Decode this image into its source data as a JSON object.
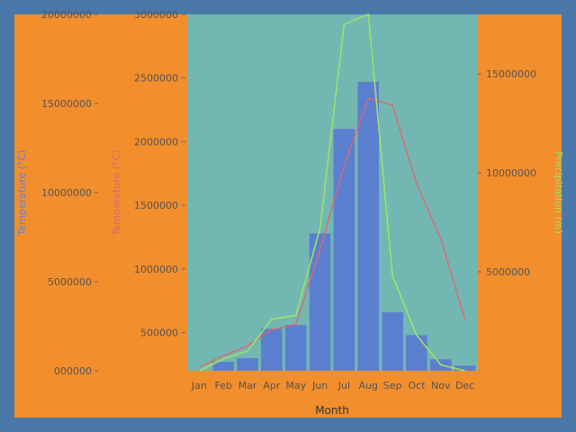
{
  "chart_data": {
    "type": "bar",
    "categories": [
      "Jan",
      "Feb",
      "Mar",
      "Apr",
      "May",
      "Jun",
      "Jul",
      "Aug",
      "Sep",
      "Oct",
      "Nov",
      "Dec"
    ],
    "xlabel": "Month",
    "bars": {
      "color": "#5b7fcf",
      "values": [
        130000,
        270000,
        300000,
        530000,
        560000,
        1280000,
        2100000,
        2470000,
        660000,
        480000,
        290000,
        240000
      ]
    },
    "red_line": {
      "color": "#e4646e",
      "values": [
        200000,
        850000,
        1400000,
        2300000,
        2600000,
        6800000,
        11500000,
        15300000,
        14900000,
        10500000,
        7400000,
        2900000
      ]
    },
    "green_line": {
      "color": "#9ee06b",
      "values": [
        0,
        600000,
        1000000,
        2600000,
        2800000,
        7200000,
        17500000,
        18000000,
        4800000,
        1800000,
        300000,
        0
      ]
    },
    "axes": {
      "left_outer": {
        "label": "Temperature (°C)",
        "color": "#6b7fc8",
        "ylim": [
          0,
          20000000
        ],
        "ticks": [
          0,
          5000000,
          10000000,
          15000000,
          20000000
        ],
        "tick_labels": [
          "000000",
          "5000000",
          "10000000",
          "15000000",
          "20000000"
        ]
      },
      "left_inner": {
        "label": "Temperature (°C)",
        "color": "#e4646e",
        "ylim": [
          200000,
          3000000
        ],
        "ticks": [
          500000,
          1000000,
          1500000,
          2000000,
          2500000,
          3000000
        ],
        "tick_labels": [
          "500000",
          "1000000",
          "1500000",
          "2000000",
          "2500000",
          "3000000"
        ]
      },
      "right": {
        "label": "Precipitation (m)",
        "color": "#9ee06b",
        "ylim": [
          0,
          18000000
        ],
        "ticks": [
          5000000,
          10000000,
          15000000
        ],
        "tick_labels": [
          "5000000",
          "10000000",
          "15000000"
        ]
      }
    },
    "plot_background": "#72b7b2",
    "grid": false
  }
}
